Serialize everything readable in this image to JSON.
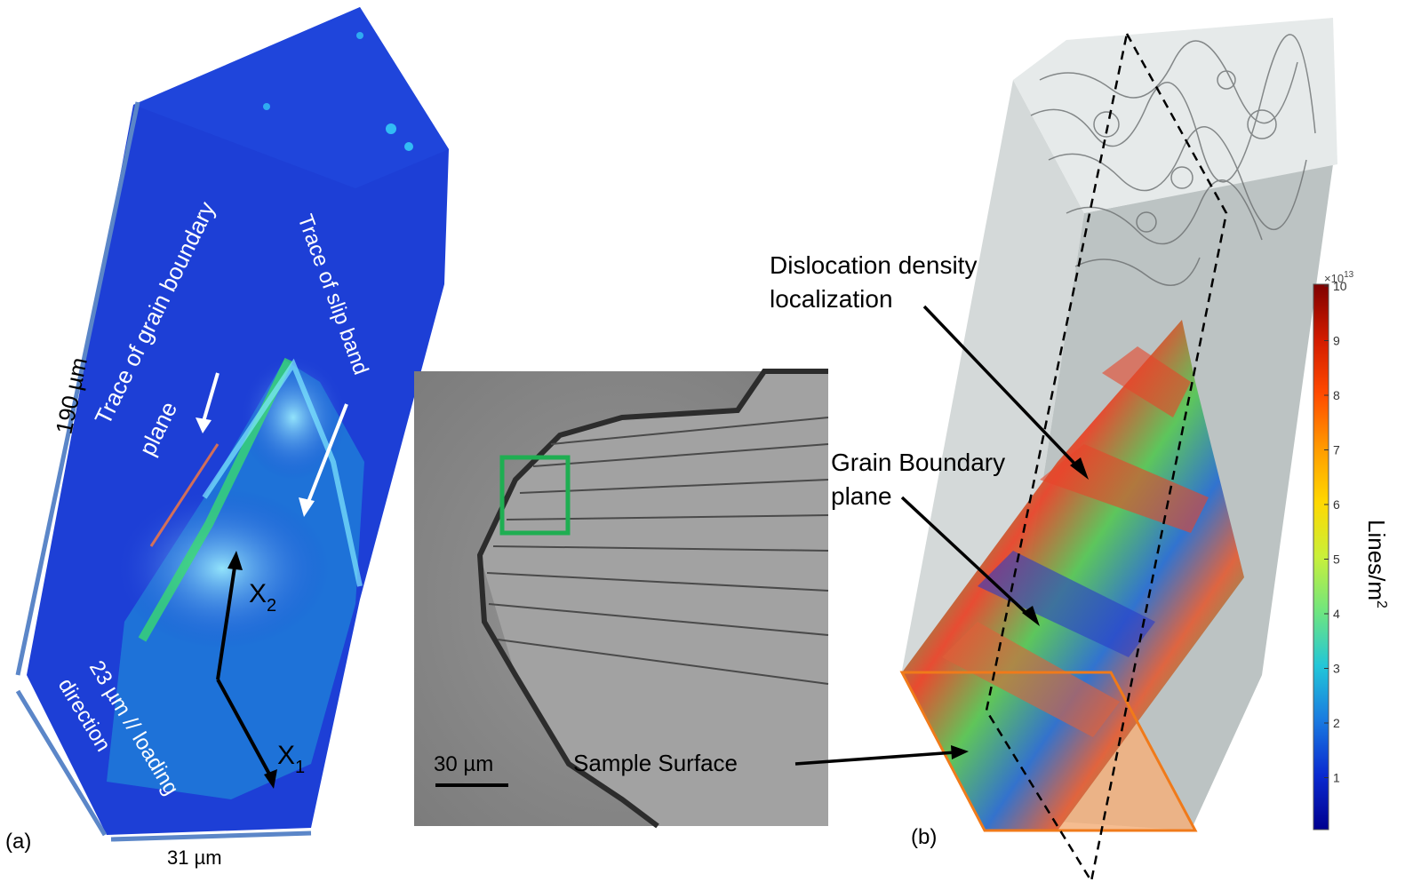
{
  "panel_a": {
    "label": "(a)",
    "annotation_gb": "Trace of grain boundary plane",
    "annotation_gb_line1": "Trace of grain boundary",
    "annotation_gb_line2": "plane",
    "annotation_slip": "Trace of slip band",
    "axis_x2": "X",
    "axis_x2_sub": "2",
    "axis_x1": "X",
    "axis_x1_sub": "1",
    "dim_height": "190 µm",
    "dim_depth_line1": "23 µm // loading",
    "dim_depth_line2": "direction",
    "dim_width": "31 µm"
  },
  "panel_middle": {
    "scale_bar_label": "30 µm"
  },
  "panel_b": {
    "label": "(b)",
    "annotation_dd_line1": "Dislocation density",
    "annotation_dd_line2": "localization",
    "annotation_gb_line1": "Grain Boundary",
    "annotation_gb_line2": "plane",
    "annotation_surface": "Sample Surface"
  },
  "colorbar": {
    "title": "Lines/m²",
    "title_base": "Lines/m",
    "title_sup": "2",
    "multiplier_base": "×10",
    "multiplier_exp": "13",
    "ticks": [
      "10",
      "9",
      "8",
      "7",
      "6",
      "5",
      "4",
      "3",
      "2",
      "1"
    ],
    "colormap": [
      "#7f0000",
      "#d11b00",
      "#ff4a00",
      "#ff9a00",
      "#ffd800",
      "#c9f03a",
      "#6fe57f",
      "#22c6d8",
      "#1a7ae0",
      "#0a2ad0",
      "#00008f"
    ]
  },
  "colors": {
    "panel_a_background": "#1d3fd6",
    "panel_a_edge": "#5b86c8",
    "sem_background": "#8a8a8a",
    "green_box": "#1fae52",
    "surface_outline": "#f07a1a",
    "surface_fill": "#f3b07c"
  }
}
